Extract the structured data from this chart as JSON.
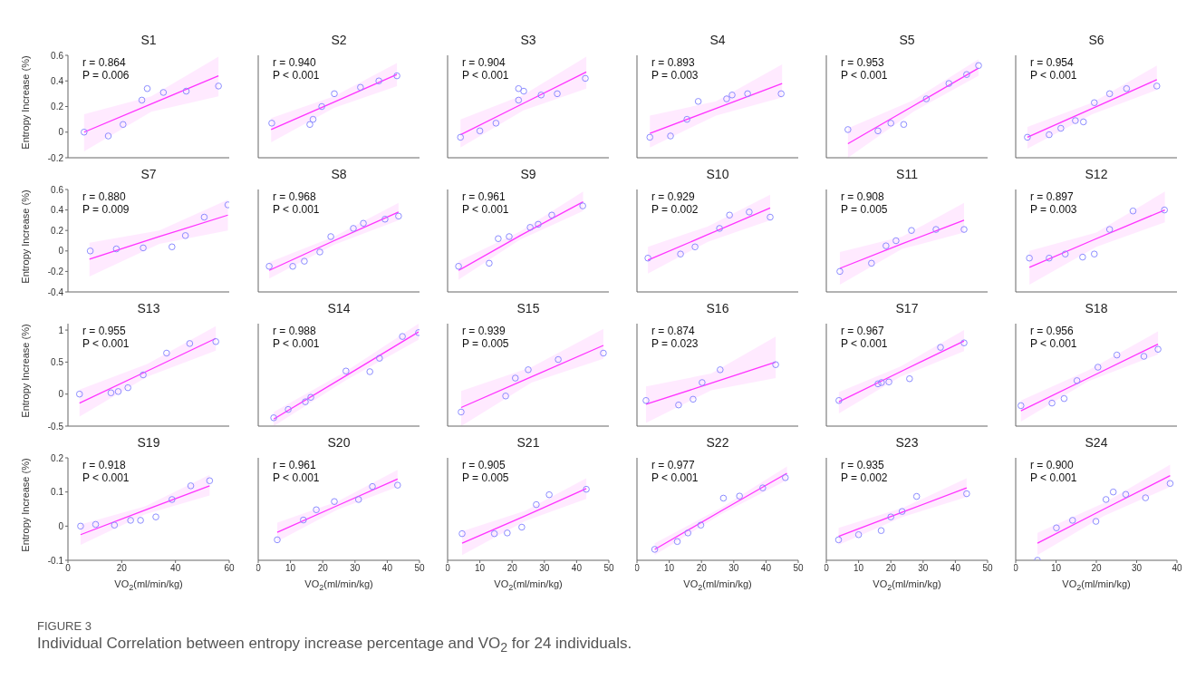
{
  "chart_data": [
    {
      "type": "scatter",
      "title": "S1",
      "ylabel": "Entropy Increase (%)",
      "xlim": [
        0,
        60
      ],
      "xticks": [
        0,
        20,
        40,
        60
      ],
      "ylim": [
        -0.2,
        0.6
      ],
      "yticks": [
        -0.2,
        0,
        0.2,
        0.4,
        0.6
      ],
      "tick_labels": "y",
      "marker": "circle",
      "annotations": [
        "r = 0.864",
        "P = 0.006",
        "FIGURE 3",
        "Individual Correlation between entropy increase percentage and VO$_{2}$ for 24 individuals."
      ],
      "series": [
        {
          "type": "scatter",
          "color": "#8c8cff",
          "x": [
            6,
            15,
            20.5,
            27.5,
            29.5,
            35.5,
            44,
            56
          ],
          "values": [
            0,
            -0.03,
            0.06,
            0.25,
            0.34,
            0.31,
            0.32,
            0.36
          ]
        },
        {
          "type": "line",
          "color": "#ff33ff",
          "marker": "none",
          "x": [
            6,
            31,
            56
          ],
          "values": [
            0,
            0.22,
            0.44
          ],
          "lower": [
            -0.15,
            0.16,
            0.28
          ],
          "upper": [
            0.14,
            0.28,
            0.59
          ]
        }
      ]
    },
    {
      "type": "scatter",
      "title": "S2",
      "xlim": [
        0,
        50
      ],
      "xticks": [
        0,
        10,
        20,
        30,
        40,
        50
      ],
      "ylim": [
        -0.2,
        0.6
      ],
      "yticks": [
        -0.2,
        0,
        0.2,
        0.4,
        0.6
      ],
      "tick_labels": false,
      "marker": "circle",
      "annotations": [
        "r = 0.940",
        "P < 0.001"
      ],
      "series": [
        {
          "type": "scatter",
          "color": "#8c8cff",
          "x": [
            4.2,
            16,
            17,
            19.7,
            23.6,
            31.7,
            37.4,
            43
          ],
          "values": [
            0.07,
            0.06,
            0.1,
            0.2,
            0.3,
            0.35,
            0.4,
            0.44
          ]
        },
        {
          "type": "line",
          "color": "#ff33ff",
          "marker": "none",
          "x": [
            4,
            23.5,
            43
          ],
          "values": [
            0.02,
            0.235,
            0.45
          ],
          "lower": [
            -0.08,
            0.19,
            0.36
          ],
          "upper": [
            0.11,
            0.28,
            0.54
          ]
        }
      ]
    },
    {
      "type": "scatter",
      "title": "S3",
      "xlim": [
        0,
        50
      ],
      "xticks": [
        0,
        10,
        20,
        30,
        40,
        50
      ],
      "ylim": [
        -0.2,
        0.6
      ],
      "yticks": [
        -0.2,
        0,
        0.2,
        0.4,
        0.6
      ],
      "tick_labels": false,
      "marker": "circle",
      "annotations": [
        "r = 0.904",
        "P < 0.001"
      ],
      "series": [
        {
          "type": "scatter",
          "color": "#8c8cff",
          "x": [
            4,
            10,
            15,
            22,
            22,
            23.6,
            29,
            34,
            42.7
          ],
          "values": [
            -0.04,
            0.01,
            0.07,
            0.25,
            0.34,
            0.32,
            0.29,
            0.3,
            0.42
          ]
        },
        {
          "type": "line",
          "color": "#ff33ff",
          "marker": "none",
          "x": [
            4,
            23.5,
            43
          ],
          "values": [
            -0.02,
            0.225,
            0.47
          ],
          "lower": [
            -0.12,
            0.17,
            0.34
          ],
          "upper": [
            0.1,
            0.29,
            0.59
          ]
        }
      ]
    },
    {
      "type": "scatter",
      "title": "S4",
      "xlim": [
        0,
        50
      ],
      "xticks": [
        0,
        10,
        20,
        30,
        40,
        50
      ],
      "ylim": [
        -0.2,
        0.6
      ],
      "yticks": [
        -0.2,
        0,
        0.2,
        0.4,
        0.6
      ],
      "tick_labels": false,
      "marker": "circle",
      "annotations": [
        "r = 0.893",
        "P = 0.003"
      ],
      "series": [
        {
          "type": "scatter",
          "color": "#8c8cff",
          "x": [
            4,
            10.4,
            15.5,
            19,
            27.8,
            29.5,
            34.3,
            44.7
          ],
          "values": [
            -0.04,
            -0.03,
            0.1,
            0.24,
            0.26,
            0.29,
            0.3,
            0.3
          ]
        },
        {
          "type": "line",
          "color": "#ff33ff",
          "marker": "none",
          "x": [
            4,
            24.5,
            45
          ],
          "values": [
            -0.01,
            0.185,
            0.38
          ],
          "lower": [
            -0.12,
            0.13,
            0.27
          ],
          "upper": [
            0.13,
            0.24,
            0.53
          ]
        }
      ]
    },
    {
      "type": "scatter",
      "title": "S5",
      "xlim": [
        0,
        50
      ],
      "xticks": [
        0,
        10,
        20,
        30,
        40,
        50
      ],
      "ylim": [
        -0.2,
        0.6
      ],
      "yticks": [
        -0.2,
        0,
        0.2,
        0.4,
        0.6
      ],
      "tick_labels": false,
      "marker": "circle",
      "annotations": [
        "r = 0.953",
        "P < 0.001"
      ],
      "series": [
        {
          "type": "scatter",
          "color": "#8c8cff",
          "x": [
            6.7,
            16,
            20,
            24,
            31,
            38,
            43.5,
            47.2
          ],
          "values": [
            0.02,
            0.01,
            0.07,
            0.06,
            0.26,
            0.38,
            0.45,
            0.52
          ]
        },
        {
          "type": "line",
          "color": "#ff33ff",
          "marker": "none",
          "x": [
            6.7,
            27,
            47.2
          ],
          "values": [
            -0.09,
            0.205,
            0.5
          ],
          "lower": [
            -0.2,
            0.16,
            0.44
          ],
          "upper": [
            0.03,
            0.25,
            0.57
          ]
        }
      ]
    },
    {
      "type": "scatter",
      "title": "S6",
      "xlim": [
        0,
        40
      ],
      "xticks": [
        0,
        10,
        20,
        30,
        40
      ],
      "ylim": [
        -0.2,
        0.6
      ],
      "yticks": [
        -0.2,
        0,
        0.2,
        0.4,
        0.6
      ],
      "tick_labels": false,
      "marker": "circle",
      "annotations": [
        "r = 0.954",
        "P < 0.001"
      ],
      "series": [
        {
          "type": "scatter",
          "color": "#8c8cff",
          "x": [
            2.9,
            8.3,
            11.2,
            14.8,
            16.8,
            19.5,
            23.3,
            27.5,
            35
          ],
          "values": [
            -0.04,
            -0.02,
            0.03,
            0.09,
            0.08,
            0.23,
            0.3,
            0.34,
            0.36
          ]
        },
        {
          "type": "line",
          "color": "#ff33ff",
          "marker": "none",
          "x": [
            2.9,
            19,
            35
          ],
          "values": [
            -0.04,
            0.185,
            0.41
          ],
          "lower": [
            -0.13,
            0.14,
            0.33
          ],
          "upper": [
            0.04,
            0.23,
            0.52
          ]
        }
      ]
    },
    {
      "type": "scatter",
      "title": "S7",
      "ylabel": "Entropy Increase (%)",
      "xlim": [
        0,
        60
      ],
      "xticks": [
        0,
        20,
        40,
        60
      ],
      "ylim": [
        -0.4,
        0.6
      ],
      "yticks": [
        -0.4,
        -0.2,
        0,
        0.2,
        0.4,
        0.6
      ],
      "tick_labels": "y",
      "marker": "circle",
      "annotations": [
        "r = 0.880",
        "P = 0.009"
      ],
      "series": [
        {
          "type": "scatter",
          "color": "#8c8cff",
          "x": [
            8.3,
            18,
            28,
            38.7,
            43.7,
            50.7,
            59.5
          ],
          "values": [
            0,
            0.02,
            0.03,
            0.04,
            0.15,
            0.33,
            0.45
          ]
        },
        {
          "type": "line",
          "color": "#ff33ff",
          "marker": "none",
          "x": [
            8,
            34,
            59.5
          ],
          "values": [
            -0.08,
            0.14,
            0.35
          ],
          "lower": [
            -0.25,
            0.07,
            0.2
          ],
          "upper": [
            0.08,
            0.2,
            0.5
          ]
        }
      ]
    },
    {
      "type": "scatter",
      "title": "S8",
      "xlim": [
        0,
        50
      ],
      "xticks": [
        0,
        10,
        20,
        30,
        40,
        50
      ],
      "ylim": [
        -0.4,
        0.6
      ],
      "yticks": [
        -0.4,
        -0.2,
        0,
        0.2,
        0.4,
        0.6
      ],
      "tick_labels": false,
      "marker": "circle",
      "annotations": [
        "r = 0.968",
        "P < 0.001"
      ],
      "series": [
        {
          "type": "scatter",
          "color": "#8c8cff",
          "x": [
            3.4,
            10.7,
            14.3,
            19.1,
            22.5,
            29.5,
            32.6,
            39.3,
            43.5
          ],
          "values": [
            -0.15,
            -0.15,
            -0.1,
            -0.01,
            0.14,
            0.22,
            0.27,
            0.31,
            0.34
          ]
        },
        {
          "type": "line",
          "color": "#ff33ff",
          "marker": "none",
          "x": [
            3.4,
            23.5,
            43.5
          ],
          "values": [
            -0.19,
            0.1,
            0.38
          ],
          "lower": [
            -0.27,
            0.06,
            0.3
          ],
          "upper": [
            -0.11,
            0.14,
            0.47
          ]
        }
      ]
    },
    {
      "type": "scatter",
      "title": "S9",
      "xlim": [
        0,
        50
      ],
      "xticks": [
        0,
        10,
        20,
        30,
        40,
        50
      ],
      "ylim": [
        -0.4,
        0.6
      ],
      "yticks": [
        -0.4,
        -0.2,
        0,
        0.2,
        0.4,
        0.6
      ],
      "tick_labels": false,
      "marker": "circle",
      "annotations": [
        "r = 0.961",
        "P < 0.001"
      ],
      "series": [
        {
          "type": "scatter",
          "color": "#8c8cff",
          "x": [
            3.4,
            12.9,
            15.7,
            19.1,
            25.6,
            28.1,
            32.3,
            41.9
          ],
          "values": [
            -0.15,
            -0.12,
            0.12,
            0.14,
            0.23,
            0.26,
            0.35,
            0.44
          ]
        },
        {
          "type": "line",
          "color": "#ff33ff",
          "marker": "none",
          "x": [
            3.4,
            22.5,
            42
          ],
          "values": [
            -0.19,
            0.15,
            0.48
          ],
          "lower": [
            -0.28,
            0.11,
            0.39
          ],
          "upper": [
            -0.1,
            0.19,
            0.58
          ]
        }
      ]
    },
    {
      "type": "scatter",
      "title": "S10",
      "xlim": [
        0,
        50
      ],
      "xticks": [
        0,
        10,
        20,
        30,
        40,
        50
      ],
      "ylim": [
        -0.4,
        0.6
      ],
      "yticks": [
        -0.4,
        -0.2,
        0,
        0.2,
        0.4,
        0.6
      ],
      "tick_labels": false,
      "marker": "circle",
      "annotations": [
        "r = 0.929",
        "P = 0.002"
      ],
      "series": [
        {
          "type": "scatter",
          "color": "#8c8cff",
          "x": [
            3.4,
            13.5,
            18,
            25.6,
            28.7,
            34.8,
            41.3
          ],
          "values": [
            -0.07,
            -0.03,
            0.04,
            0.22,
            0.35,
            0.38,
            0.33
          ]
        },
        {
          "type": "line",
          "color": "#ff33ff",
          "marker": "none",
          "x": [
            3.4,
            22,
            41.3
          ],
          "values": [
            -0.09,
            0.16,
            0.42
          ],
          "lower": [
            -0.22,
            0.09,
            0.3
          ],
          "upper": [
            0.04,
            0.24,
            0.55
          ]
        }
      ]
    },
    {
      "type": "scatter",
      "title": "S11",
      "xlim": [
        0,
        50
      ],
      "xticks": [
        0,
        10,
        20,
        30,
        40,
        50
      ],
      "ylim": [
        -0.4,
        0.6
      ],
      "yticks": [
        -0.4,
        -0.2,
        0,
        0.2,
        0.4,
        0.6
      ],
      "tick_labels": false,
      "marker": "circle",
      "annotations": [
        "r = 0.908",
        "P = 0.005"
      ],
      "series": [
        {
          "type": "scatter",
          "color": "#8c8cff",
          "x": [
            4.2,
            14,
            18.5,
            21.6,
            26.4,
            34,
            42.7
          ],
          "values": [
            -0.2,
            -0.12,
            0.05,
            0.1,
            0.2,
            0.21,
            0.21
          ]
        },
        {
          "type": "line",
          "color": "#ff33ff",
          "marker": "none",
          "x": [
            4.2,
            23.5,
            42.7
          ],
          "values": [
            -0.17,
            0.07,
            0.3
          ],
          "lower": [
            -0.33,
            0.02,
            0.18
          ],
          "upper": [
            -0.01,
            0.14,
            0.47
          ]
        }
      ]
    },
    {
      "type": "scatter",
      "title": "S12",
      "xlim": [
        0,
        40
      ],
      "xticks": [
        0,
        10,
        20,
        30,
        40
      ],
      "ylim": [
        -0.4,
        0.6
      ],
      "yticks": [
        -0.4,
        -0.2,
        0,
        0.2,
        0.4,
        0.6
      ],
      "tick_labels": false,
      "marker": "circle",
      "annotations": [
        "r = 0.897",
        "P = 0.003"
      ],
      "series": [
        {
          "type": "scatter",
          "color": "#8c8cff",
          "x": [
            3.4,
            8.3,
            12.3,
            16.6,
            19.5,
            23.3,
            29.1,
            36.9
          ],
          "values": [
            -0.07,
            -0.07,
            -0.03,
            -0.06,
            -0.03,
            0.21,
            0.39,
            0.4
          ]
        },
        {
          "type": "line",
          "color": "#ff33ff",
          "marker": "none",
          "x": [
            3.4,
            20,
            37
          ],
          "values": [
            -0.16,
            0.12,
            0.4
          ],
          "lower": [
            -0.33,
            0.04,
            0.28
          ],
          "upper": [
            0,
            0.18,
            0.58
          ]
        }
      ]
    },
    {
      "type": "scatter",
      "title": "S13",
      "ylabel": "Entropy Increase (%)",
      "xlim": [
        0,
        60
      ],
      "xticks": [
        0,
        20,
        40,
        60
      ],
      "ylim": [
        -0.5,
        1.1
      ],
      "yticks": [
        -0.5,
        0,
        0.5,
        1
      ],
      "tick_labels": "y",
      "marker": "circle",
      "annotations": [
        "r = 0.955",
        "P < 0.001"
      ],
      "series": [
        {
          "type": "scatter",
          "color": "#8c8cff",
          "x": [
            4.3,
            16,
            18.7,
            22.3,
            28,
            36.7,
            45.3,
            55
          ],
          "values": [
            0,
            0.02,
            0.04,
            0.1,
            0.3,
            0.64,
            0.79,
            0.82
          ]
        },
        {
          "type": "line",
          "color": "#ff33ff",
          "marker": "none",
          "x": [
            4.3,
            29.5,
            55
          ],
          "values": [
            -0.14,
            0.36,
            0.87
          ],
          "lower": [
            -0.35,
            0.27,
            0.68
          ],
          "upper": [
            0.07,
            0.47,
            1.06
          ]
        }
      ]
    },
    {
      "type": "scatter",
      "title": "S14",
      "xlim": [
        0,
        50
      ],
      "xticks": [
        0,
        10,
        20,
        30,
        40,
        50
      ],
      "ylim": [
        -0.5,
        1.1
      ],
      "yticks": [
        -0.5,
        0,
        0.5,
        1
      ],
      "tick_labels": false,
      "marker": "circle",
      "annotations": [
        "r = 0.988",
        "P < 0.001"
      ],
      "series": [
        {
          "type": "scatter",
          "color": "#8c8cff",
          "x": [
            4.8,
            9.3,
            14.6,
            16.3,
            27.2,
            34.6,
            37.6,
            44.7,
            49.7
          ],
          "values": [
            -0.37,
            -0.24,
            -0.12,
            -0.05,
            0.36,
            0.35,
            0.56,
            0.9,
            0.96
          ]
        },
        {
          "type": "line",
          "color": "#ff33ff",
          "marker": "none",
          "x": [
            4.8,
            27,
            49.7
          ],
          "values": [
            -0.39,
            0.28,
            0.97
          ],
          "lower": [
            -0.5,
            0.21,
            0.85
          ],
          "upper": [
            -0.28,
            0.35,
            1.1
          ]
        }
      ]
    },
    {
      "type": "scatter",
      "title": "S15",
      "xlim": [
        0,
        50
      ],
      "xticks": [
        0,
        10,
        20,
        30,
        40,
        50
      ],
      "ylim": [
        -0.5,
        1.1
      ],
      "yticks": [
        -0.5,
        0,
        0.5,
        1
      ],
      "tick_labels": false,
      "marker": "circle",
      "annotations": [
        "r = 0.939",
        "P = 0.005"
      ],
      "series": [
        {
          "type": "scatter",
          "color": "#8c8cff",
          "x": [
            4.2,
            18,
            21,
            25,
            34.3,
            48.3
          ],
          "values": [
            -0.28,
            -0.03,
            0.25,
            0.38,
            0.54,
            0.64
          ]
        },
        {
          "type": "line",
          "color": "#ff33ff",
          "marker": "none",
          "x": [
            4.2,
            26,
            48.3
          ],
          "values": [
            -0.21,
            0.27,
            0.76
          ],
          "lower": [
            -0.5,
            0.18,
            0.55
          ],
          "upper": [
            0.05,
            0.42,
            1.02
          ]
        }
      ]
    },
    {
      "type": "scatter",
      "title": "S16",
      "xlim": [
        0,
        50
      ],
      "xticks": [
        0,
        10,
        20,
        30,
        40,
        50
      ],
      "ylim": [
        -0.5,
        1.1
      ],
      "yticks": [
        -0.5,
        0,
        0.5,
        1
      ],
      "tick_labels": false,
      "marker": "circle",
      "annotations": [
        "r = 0.874",
        "P = 0.023"
      ],
      "series": [
        {
          "type": "scatter",
          "color": "#8c8cff",
          "x": [
            2.8,
            12.9,
            17.4,
            20.2,
            25.8,
            43
          ],
          "values": [
            -0.1,
            -0.17,
            -0.08,
            0.18,
            0.38,
            0.46
          ]
        },
        {
          "type": "line",
          "color": "#ff33ff",
          "marker": "none",
          "x": [
            2.8,
            23,
            43
          ],
          "values": [
            -0.16,
            0.17,
            0.5
          ],
          "lower": [
            -0.45,
            0.06,
            0.25
          ],
          "upper": [
            0.12,
            0.32,
            0.9
          ]
        }
      ]
    },
    {
      "type": "scatter",
      "title": "S17",
      "xlim": [
        0,
        50
      ],
      "xticks": [
        0,
        10,
        20,
        30,
        40,
        50
      ],
      "ylim": [
        -0.5,
        1.1
      ],
      "yticks": [
        -0.5,
        0,
        0.5,
        1
      ],
      "tick_labels": false,
      "marker": "circle",
      "annotations": [
        "r = 0.967",
        "P < 0.001"
      ],
      "series": [
        {
          "type": "scatter",
          "color": "#8c8cff",
          "x": [
            3.9,
            16,
            17.1,
            19.4,
            25.8,
            35.4,
            42.7
          ],
          "values": [
            -0.1,
            0.16,
            0.18,
            0.19,
            0.24,
            0.73,
            0.8
          ]
        },
        {
          "type": "line",
          "color": "#ff33ff",
          "marker": "none",
          "x": [
            3.9,
            23,
            42.7
          ],
          "values": [
            -0.12,
            0.35,
            0.83
          ],
          "lower": [
            -0.3,
            0.27,
            0.67
          ],
          "upper": [
            0.03,
            0.43,
            1
          ]
        }
      ]
    },
    {
      "type": "scatter",
      "title": "S18",
      "xlim": [
        0,
        40
      ],
      "xticks": [
        0,
        10,
        20,
        30,
        40
      ],
      "ylim": [
        -0.5,
        1.1
      ],
      "yticks": [
        -0.5,
        0,
        0.5,
        1
      ],
      "tick_labels": false,
      "marker": "circle",
      "annotations": [
        "r = 0.956",
        "P < 0.001"
      ],
      "series": [
        {
          "type": "scatter",
          "color": "#8c8cff",
          "x": [
            1.3,
            9,
            12,
            15.2,
            20.4,
            25.1,
            31.8,
            35.3
          ],
          "values": [
            -0.18,
            -0.14,
            -0.07,
            0.21,
            0.42,
            0.61,
            0.59,
            0.7
          ]
        },
        {
          "type": "line",
          "color": "#ff33ff",
          "marker": "none",
          "x": [
            1.3,
            18,
            35.3
          ],
          "values": [
            -0.26,
            0.25,
            0.78
          ],
          "lower": [
            -0.43,
            0.2,
            0.62
          ],
          "upper": [
            -0.1,
            0.37,
            0.98
          ]
        }
      ]
    },
    {
      "type": "scatter",
      "title": "S19",
      "ylabel": "Entropy Increase (%)",
      "xlabel": "VO$_{2}$(ml/min/kg)",
      "xlim": [
        0,
        60
      ],
      "xticks": [
        0,
        20,
        40,
        60
      ],
      "ylim": [
        -0.1,
        0.2
      ],
      "yticks": [
        -0.1,
        0,
        0.1,
        0.2
      ],
      "marker": "circle",
      "annotations": [
        "r = 0.918",
        "P < 0.001"
      ],
      "series": [
        {
          "type": "scatter",
          "color": "#8c8cff",
          "x": [
            4.7,
            10.3,
            17.3,
            23.3,
            27,
            32.7,
            38.7,
            45.7,
            52.7
          ],
          "values": [
            0,
            0.005,
            0.003,
            0.017,
            0.017,
            0.027,
            0.078,
            0.118,
            0.133
          ]
        },
        {
          "type": "line",
          "color": "#ff33ff",
          "marker": "none",
          "x": [
            4.7,
            28.7,
            52.7
          ],
          "values": [
            -0.025,
            0.047,
            0.118
          ],
          "lower": [
            -0.055,
            0.035,
            0.09
          ],
          "upper": [
            0.005,
            0.058,
            0.15
          ]
        }
      ]
    },
    {
      "type": "scatter",
      "title": "S20",
      "xlabel": "VO$_{2}$(ml/min/kg)",
      "xlim": [
        0,
        50
      ],
      "xticks": [
        0,
        10,
        20,
        30,
        40,
        50
      ],
      "ylim": [
        -0.1,
        0.2
      ],
      "yticks": [
        -0.1,
        0,
        0.1,
        0.2
      ],
      "tick_labels": "x",
      "marker": "circle",
      "annotations": [
        "r = 0.961",
        "P < 0.001"
      ],
      "series": [
        {
          "type": "scatter",
          "color": "#8c8cff",
          "x": [
            5.9,
            14,
            18,
            23.6,
            31.1,
            35.4,
            43.2
          ],
          "values": [
            -0.04,
            0.018,
            0.048,
            0.072,
            0.078,
            0.116,
            0.12
          ]
        },
        {
          "type": "line",
          "color": "#ff33ff",
          "marker": "none",
          "x": [
            5.9,
            24.5,
            43.2
          ],
          "values": [
            -0.018,
            0.06,
            0.138
          ],
          "lower": [
            -0.045,
            0.048,
            0.115
          ],
          "upper": [
            0.01,
            0.072,
            0.165
          ]
        }
      ]
    },
    {
      "type": "scatter",
      "title": "S21",
      "xlabel": "VO$_{2}$(ml/min/kg)",
      "xlim": [
        0,
        50
      ],
      "xticks": [
        0,
        10,
        20,
        30,
        40,
        50
      ],
      "ylim": [
        -0.1,
        0.2
      ],
      "yticks": [
        -0.1,
        0,
        0.1,
        0.2
      ],
      "tick_labels": "x",
      "marker": "circle",
      "annotations": [
        "r = 0.905",
        "P = 0.005"
      ],
      "series": [
        {
          "type": "scatter",
          "color": "#8c8cff",
          "x": [
            4.5,
            14.5,
            18.5,
            23,
            27.5,
            31.5,
            43
          ],
          "values": [
            -0.022,
            -0.022,
            -0.02,
            -0.003,
            0.063,
            0.092,
            0.108
          ]
        },
        {
          "type": "line",
          "color": "#ff33ff",
          "marker": "none",
          "x": [
            4.5,
            24,
            43
          ],
          "values": [
            -0.05,
            0.03,
            0.11
          ],
          "lower": [
            -0.085,
            0.015,
            0.08
          ],
          "upper": [
            -0.015,
            0.045,
            0.14
          ]
        }
      ]
    },
    {
      "type": "scatter",
      "title": "S22",
      "xlabel": "VO$_{2}$(ml/min/kg)",
      "xlim": [
        0,
        50
      ],
      "xticks": [
        0,
        10,
        20,
        30,
        40,
        50
      ],
      "ylim": [
        -0.1,
        0.2
      ],
      "yticks": [
        -0.1,
        0,
        0.1,
        0.2
      ],
      "tick_labels": "x",
      "marker": "circle",
      "annotations": [
        "r = 0.977",
        "P < 0.001"
      ],
      "series": [
        {
          "type": "scatter",
          "color": "#8c8cff",
          "x": [
            5.5,
            12.5,
            15.8,
            19.8,
            26.8,
            31.8,
            39,
            46
          ],
          "values": [
            -0.068,
            -0.045,
            -0.02,
            0.003,
            0.082,
            0.088,
            0.112,
            0.142
          ]
        },
        {
          "type": "line",
          "color": "#ff33ff",
          "marker": "none",
          "x": [
            5.5,
            26,
            46.5
          ],
          "values": [
            -0.068,
            0.044,
            0.155
          ],
          "lower": [
            -0.085,
            0.035,
            0.135
          ],
          "upper": [
            -0.05,
            0.053,
            0.175
          ]
        }
      ]
    },
    {
      "type": "scatter",
      "title": "S23",
      "xlabel": "VO$_{2}$(ml/min/kg)",
      "xlim": [
        0,
        50
      ],
      "xticks": [
        0,
        10,
        20,
        30,
        40,
        50
      ],
      "ylim": [
        -0.1,
        0.2
      ],
      "yticks": [
        -0.1,
        0,
        0.1,
        0.2
      ],
      "tick_labels": "x",
      "marker": "circle",
      "annotations": [
        "r = 0.935",
        "P = 0.002"
      ],
      "series": [
        {
          "type": "scatter",
          "color": "#8c8cff",
          "x": [
            3.8,
            10,
            17,
            20,
            23.5,
            28,
            43.5
          ],
          "values": [
            -0.04,
            -0.025,
            -0.013,
            0.027,
            0.043,
            0.087,
            0.095
          ]
        },
        {
          "type": "line",
          "color": "#ff33ff",
          "marker": "none",
          "x": [
            3.8,
            23.6,
            43.5
          ],
          "values": [
            -0.03,
            0.041,
            0.112
          ],
          "lower": [
            -0.055,
            0.027,
            0.085
          ],
          "upper": [
            -0.005,
            0.053,
            0.14
          ]
        }
      ]
    },
    {
      "type": "scatter",
      "title": "S24",
      "xlabel": "VO$_{2}$(ml/min/kg)",
      "xlim": [
        0,
        40
      ],
      "xticks": [
        0,
        10,
        20,
        30,
        40
      ],
      "ylim": [
        -0.1,
        0.2
      ],
      "yticks": [
        -0.1,
        0,
        0.1,
        0.2
      ],
      "tick_labels": "x",
      "marker": "circle",
      "annotations": [
        "r = 0.900",
        "P < 0.001"
      ],
      "series": [
        {
          "type": "scatter",
          "color": "#8c8cff",
          "x": [
            5.4,
            10.1,
            14.1,
            19.9,
            22.4,
            24.2,
            27.3,
            32.2,
            38.3
          ],
          "values": [
            -0.1,
            -0.005,
            0.017,
            0.014,
            0.078,
            0.1,
            0.093,
            0.083,
            0.125
          ]
        },
        {
          "type": "line",
          "color": "#ff33ff",
          "marker": "none",
          "x": [
            5.4,
            21.9,
            38.3
          ],
          "values": [
            -0.05,
            0.05,
            0.148
          ],
          "lower": [
            -0.085,
            0.03,
            0.115
          ],
          "upper": [
            -0.02,
            0.068,
            0.18
          ]
        }
      ]
    }
  ]
}
